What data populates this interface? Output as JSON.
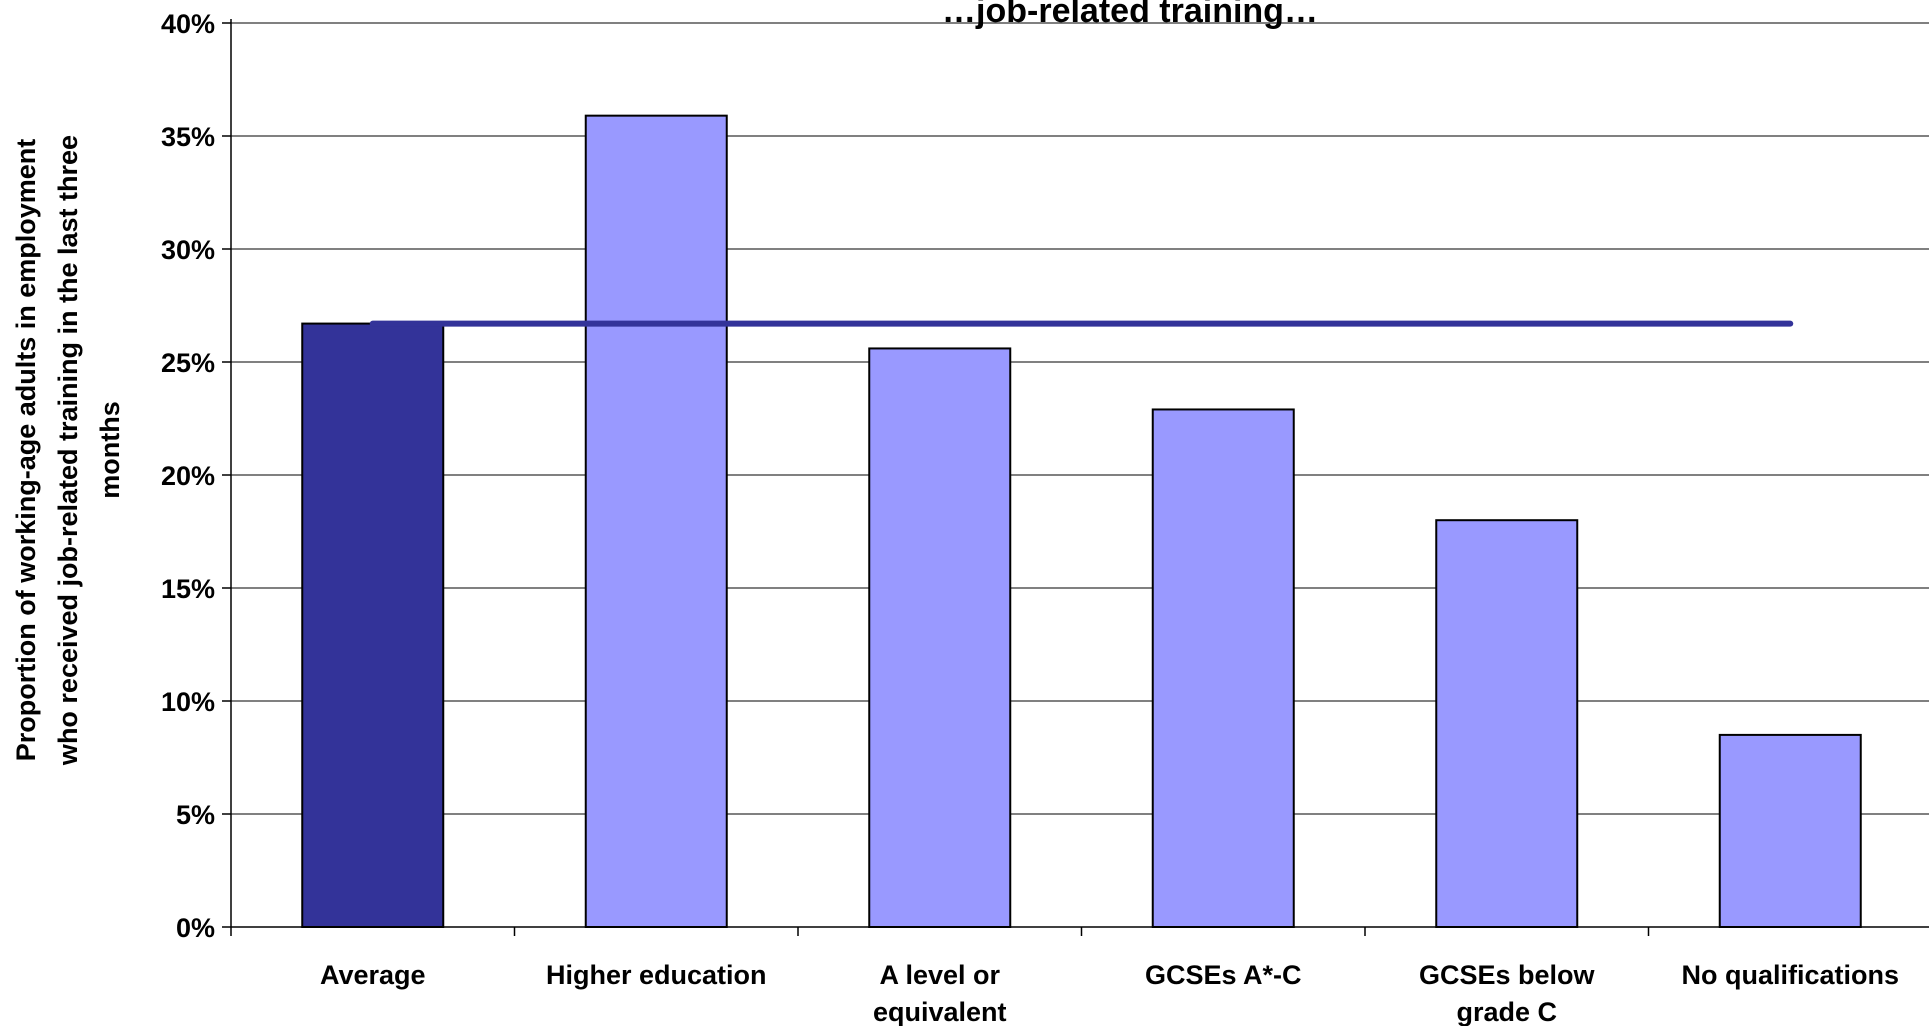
{
  "chart_data": {
    "type": "bar",
    "title": "…job-related training…",
    "ylabel_lines": [
      "Proportion of working-age adults in employment",
      "who received job-related training in the last three",
      "months"
    ],
    "xlabel": "",
    "ylim": [
      0,
      0.4
    ],
    "ytick_values": [
      0,
      0.05,
      0.1,
      0.15,
      0.2,
      0.25,
      0.3,
      0.35,
      0.4
    ],
    "ytick_labels": [
      "0%",
      "5%",
      "10%",
      "15%",
      "20%",
      "25%",
      "30%",
      "35%",
      "40%"
    ],
    "grid": true,
    "categories": [
      [
        "Average"
      ],
      [
        "Higher education"
      ],
      [
        "A level or",
        "equivalent"
      ],
      [
        "GCSEs A*-C"
      ],
      [
        "GCSEs below",
        "grade C"
      ],
      [
        "No qualifications"
      ]
    ],
    "values": [
      0.267,
      0.359,
      0.256,
      0.229,
      0.18,
      0.085
    ],
    "average_line_value": 0.267,
    "colors": {
      "average_bar": "#333399",
      "bar": "#9999FF",
      "average_line": "#333399",
      "bar_outline": "#000000",
      "grid": "#000000",
      "background": "#ffffff"
    }
  }
}
